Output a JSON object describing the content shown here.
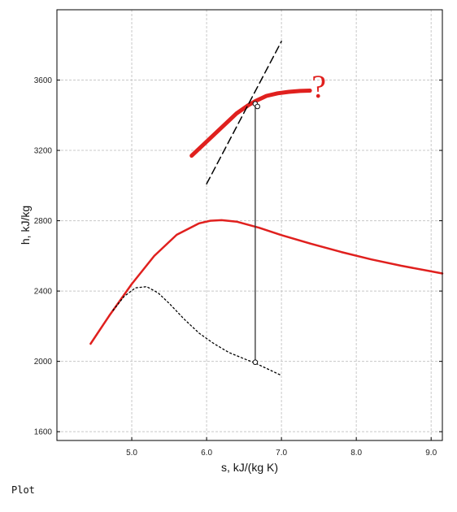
{
  "caption": "Plot",
  "chart_data": {
    "type": "line",
    "title": "",
    "xlabel": "s, kJ/(kg K)",
    "ylabel": "h, kJ/kg",
    "xlim": [
      4.0,
      9.15
    ],
    "ylim": [
      1550,
      4000
    ],
    "xticks": [
      5.0,
      6.0,
      7.0,
      8.0,
      9.0
    ],
    "xtick_labels": [
      "5.0",
      "6.0",
      "7.0",
      "8.0",
      "9.0"
    ],
    "yticks": [
      1600,
      2000,
      2400,
      2800,
      3200,
      3600
    ],
    "ytick_labels": [
      "1600",
      "2000",
      "2400",
      "2800",
      "3200",
      "3600"
    ],
    "grid": true,
    "annotation": "?",
    "series": [
      {
        "color": "#e0201e",
        "style": "solid",
        "x": [
          4.45,
          4.7,
          5.0,
          5.3,
          5.6,
          5.9,
          6.05,
          6.2,
          6.4,
          6.7,
          7.0,
          7.4,
          7.8,
          8.2,
          8.6,
          9.0,
          9.15
        ],
        "y": [
          2100,
          2260,
          2440,
          2600,
          2720,
          2785,
          2800,
          2803,
          2795,
          2760,
          2718,
          2668,
          2622,
          2580,
          2544,
          2512,
          2500
        ]
      },
      {
        "color": "#e0201e",
        "style": "bold",
        "x": [
          5.8,
          5.95,
          6.1,
          6.25,
          6.4,
          6.55,
          6.65,
          6.8,
          6.95,
          7.1,
          7.25,
          7.38
        ],
        "y": [
          3170,
          3230,
          3290,
          3350,
          3410,
          3455,
          3480,
          3510,
          3525,
          3533,
          3538,
          3540
        ]
      },
      {
        "color": "#000000",
        "style": "dashed",
        "x": [
          6.0,
          7.0
        ],
        "y": [
          3010,
          3820
        ]
      },
      {
        "color": "#000000",
        "style": "dotted",
        "x": [
          4.75,
          4.9,
          5.05,
          5.2,
          5.35,
          5.5,
          5.7,
          5.9,
          6.1,
          6.3,
          6.5,
          6.65,
          6.8,
          7.0
        ],
        "y": [
          2290,
          2370,
          2418,
          2425,
          2390,
          2330,
          2240,
          2160,
          2100,
          2050,
          2015,
          1990,
          1960,
          1920
        ]
      },
      {
        "color": "#333333",
        "style": "solid",
        "x": [
          6.65,
          6.65
        ],
        "y": [
          3465,
          1995
        ]
      }
    ],
    "points": [
      {
        "x": 6.65,
        "y": 3465
      },
      {
        "x": 6.68,
        "y": 3450
      },
      {
        "x": 6.65,
        "y": 1995
      }
    ]
  }
}
